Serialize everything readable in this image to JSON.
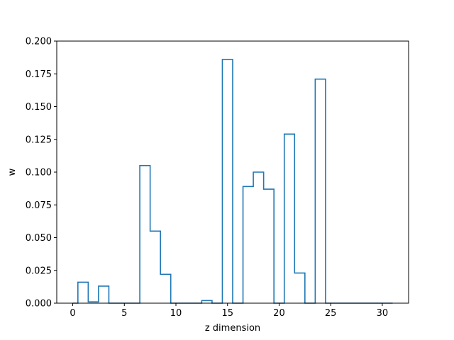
{
  "chart_data": {
    "type": "step",
    "title": "",
    "xlabel": "z dimension",
    "ylabel": "w",
    "xlim": [
      -1.55,
      32.55
    ],
    "ylim": [
      0,
      0.2
    ],
    "x_ticks": [
      0,
      5,
      10,
      15,
      20,
      25,
      30
    ],
    "y_ticks": [
      0.0,
      0.025,
      0.05,
      0.075,
      0.1,
      0.125,
      0.15,
      0.175,
      0.2
    ],
    "y_tick_labels": [
      "0.000",
      "0.025",
      "0.050",
      "0.075",
      "0.100",
      "0.125",
      "0.150",
      "0.175",
      "0.200"
    ],
    "grid": false,
    "legend": "none",
    "series": [
      {
        "color": "#1f77b4",
        "step": "mid",
        "x": [
          0,
          1,
          2,
          3,
          4,
          5,
          6,
          7,
          8,
          9,
          10,
          11,
          12,
          13,
          14,
          15,
          16,
          17,
          18,
          19,
          20,
          21,
          22,
          23,
          24,
          25,
          26,
          27,
          28,
          29,
          30,
          31
        ],
        "values": [
          0,
          0.016,
          0.001,
          0.013,
          0,
          0,
          0,
          0.105,
          0.055,
          0.022,
          0,
          0,
          0,
          0.002,
          0,
          0.186,
          0,
          0.089,
          0.1,
          0.087,
          0,
          0.129,
          0.023,
          0,
          0.171,
          0,
          0,
          0,
          0,
          0,
          0,
          0
        ]
      }
    ]
  }
}
